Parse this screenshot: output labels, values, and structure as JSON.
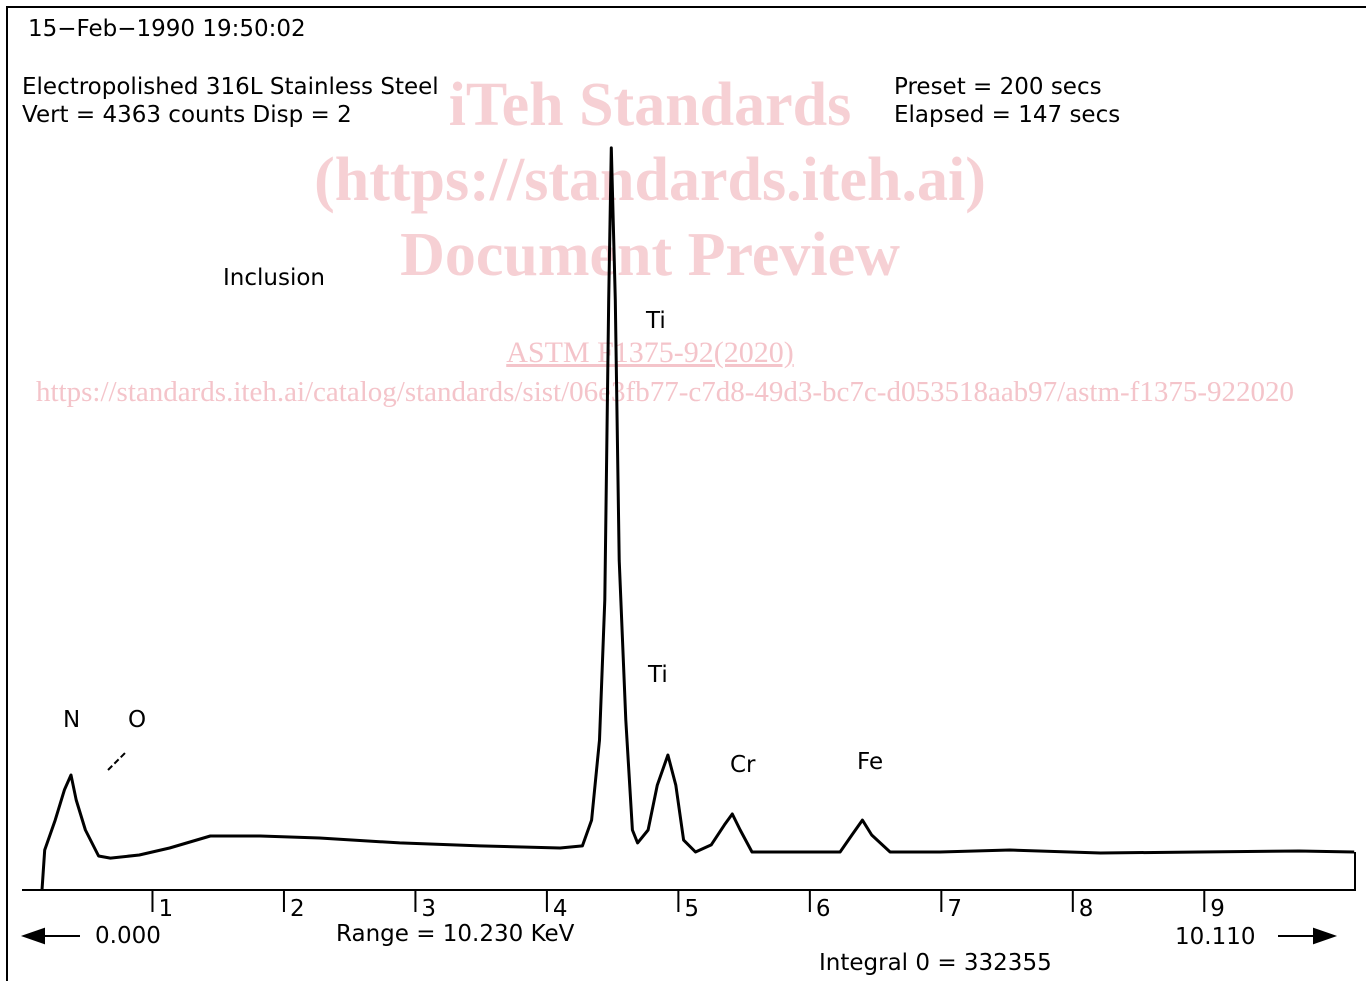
{
  "chart_data": {
    "type": "line",
    "timestamp": "15−Feb−1990  19:50:02",
    "title": "Electropolished 316L Stainless Steel",
    "subtitle": "Vert = 4363 counts  Disp = 2",
    "preset": "Preset = 200 secs",
    "elapsed": "Elapsed = 147 secs",
    "annotations": [
      "Inclusion",
      "N",
      "O",
      "Ti",
      "Ti",
      "Cr",
      "Fe"
    ],
    "start_label": "0.000",
    "range_label": "Range = 10.230 KeV",
    "end_label": "10.110",
    "integral_label": "Integral 0 = 332355",
    "watermark": [
      "iTeh Standards",
      "(https://standards.iteh.ai)",
      "Document Preview",
      "ASTM F1375-92(2020)",
      "https://standards.iteh.ai/catalog/standards/sist/06e3fb77-c7d8-49d3-bc7c-d053518aab97/astm-f1375-922020"
    ],
    "color": "#000000",
    "x": [
      0.16,
      0.18,
      0.26,
      0.33,
      0.38,
      0.42,
      0.49,
      0.59,
      0.68,
      0.9,
      1.13,
      1.44,
      1.82,
      2.27,
      2.88,
      3.49,
      4.1,
      4.27,
      4.34,
      4.4,
      4.44,
      4.47,
      4.49,
      4.52,
      4.55,
      4.6,
      4.65,
      4.69,
      4.77,
      4.84,
      4.92,
      4.98,
      5.04,
      5.13,
      5.25,
      5.35,
      5.41,
      5.47,
      5.56,
      5.85,
      6.23,
      6.32,
      6.4,
      6.47,
      6.61,
      6.99,
      7.52,
      8.21,
      8.96,
      9.72,
      10.14
    ],
    "values": [
      0,
      198,
      346,
      495,
      569,
      445,
      297,
      168,
      158,
      173,
      208,
      267,
      267,
      257,
      233,
      218,
      208,
      218,
      346,
      742,
      1435,
      2919,
      3671,
      2919,
      1632,
      841,
      297,
      233,
      297,
      519,
      668,
      519,
      247,
      188,
      223,
      322,
      376,
      297,
      188,
      188,
      188,
      272,
      346,
      272,
      188,
      188,
      198,
      183,
      188,
      193,
      188
    ],
    "xlim": [
      0,
      10.23
    ],
    "xticks": [
      1,
      2,
      3,
      4,
      5,
      6,
      7,
      8,
      9
    ],
    "ylim": [
      0,
      4363
    ]
  }
}
